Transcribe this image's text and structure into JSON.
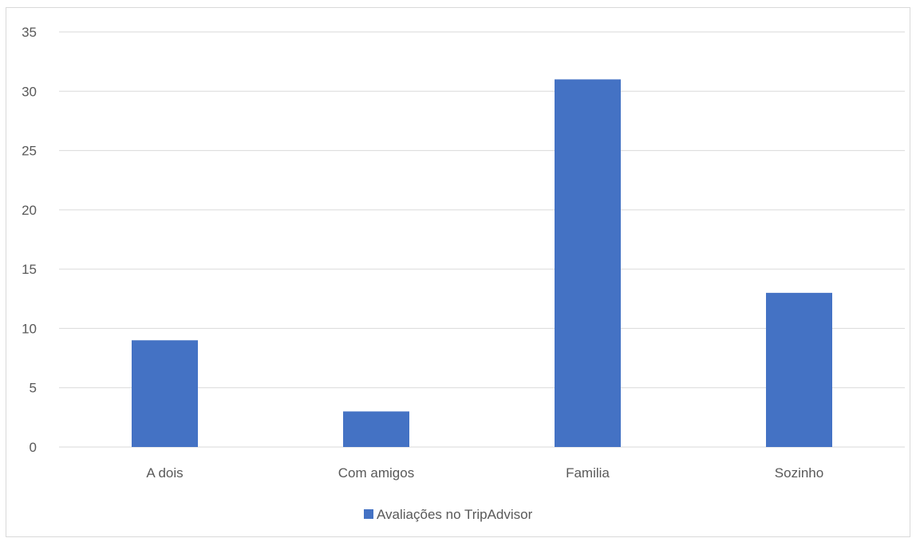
{
  "chart_data": {
    "type": "bar",
    "categories": [
      "A dois",
      "Com amigos",
      "Familia",
      "Sozinho"
    ],
    "series": [
      {
        "name": "Avaliações no TripAdvisor",
        "values": [
          9,
          3,
          31,
          13
        ],
        "color": "#4472c4"
      }
    ],
    "title": "",
    "xlabel": "",
    "ylabel": "",
    "ylim": [
      0,
      35
    ],
    "yticks": [
      0,
      5,
      10,
      15,
      20,
      25,
      30,
      35
    ],
    "grid": true,
    "legend_position": "bottom"
  }
}
